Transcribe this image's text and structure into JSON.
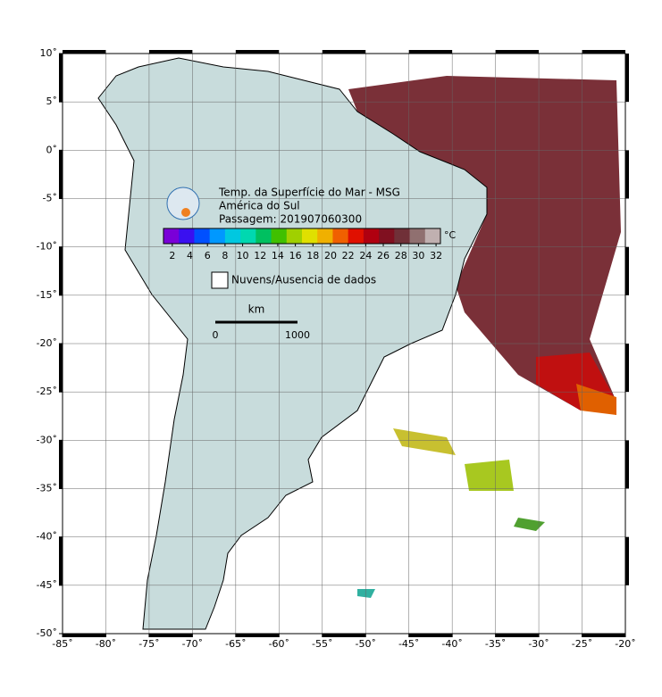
{
  "map": {
    "title": "Temp. da Superfície do Mar - MSG",
    "region": "América do Sul",
    "pass": "Passagem: 201907060300",
    "xlim": [
      -85,
      -20
    ],
    "ylim": [
      -50,
      10
    ],
    "xticks": [
      {
        "value": -85,
        "label": "-85˚"
      },
      {
        "value": -80,
        "label": "-80˚"
      },
      {
        "value": -75,
        "label": "-75˚"
      },
      {
        "value": -70,
        "label": "-70˚"
      },
      {
        "value": -65,
        "label": "-65˚"
      },
      {
        "value": -60,
        "label": "-60˚"
      },
      {
        "value": -55,
        "label": "-55˚"
      },
      {
        "value": -50,
        "label": "-50˚"
      },
      {
        "value": -45,
        "label": "-45˚"
      },
      {
        "value": -40,
        "label": "-40˚"
      },
      {
        "value": -35,
        "label": "-35˚"
      },
      {
        "value": -30,
        "label": "-30˚"
      },
      {
        "value": -25,
        "label": "-25˚"
      },
      {
        "value": -20,
        "label": "-20˚"
      }
    ],
    "yticks": [
      {
        "value": 10,
        "label": "10˚"
      },
      {
        "value": 5,
        "label": "5˚"
      },
      {
        "value": 0,
        "label": "0˚"
      },
      {
        "value": -5,
        "label": "-5˚"
      },
      {
        "value": -10,
        "label": "-10˚"
      },
      {
        "value": -15,
        "label": "-15˚"
      },
      {
        "value": -20,
        "label": "-20˚"
      },
      {
        "value": -25,
        "label": "-25˚"
      },
      {
        "value": -30,
        "label": "-30˚"
      },
      {
        "value": -35,
        "label": "-35˚"
      },
      {
        "value": -40,
        "label": "-40˚"
      },
      {
        "value": -45,
        "label": "-45˚"
      },
      {
        "value": -50,
        "label": "-50˚"
      }
    ],
    "grid": true,
    "colorbar": {
      "lim": [
        1,
        32.5
      ],
      "ticks": [
        2,
        4,
        6,
        8,
        10,
        12,
        14,
        16,
        18,
        20,
        22,
        24,
        26,
        28,
        30,
        32
      ],
      "unit": "°C",
      "colors": [
        "#7a00d8",
        "#3a10f0",
        "#0050ff",
        "#0098ff",
        "#00c8e0",
        "#00d8b0",
        "#00c060",
        "#40c000",
        "#a0d000",
        "#e0e000",
        "#f0b000",
        "#f06000",
        "#e01000",
        "#b00010",
        "#801020",
        "#703038",
        "#907070",
        "#c0b0b0"
      ]
    },
    "legend": "Nuvens/Ausencia de dados",
    "scale": {
      "unit": "km",
      "start": "0",
      "end": "1000"
    }
  }
}
